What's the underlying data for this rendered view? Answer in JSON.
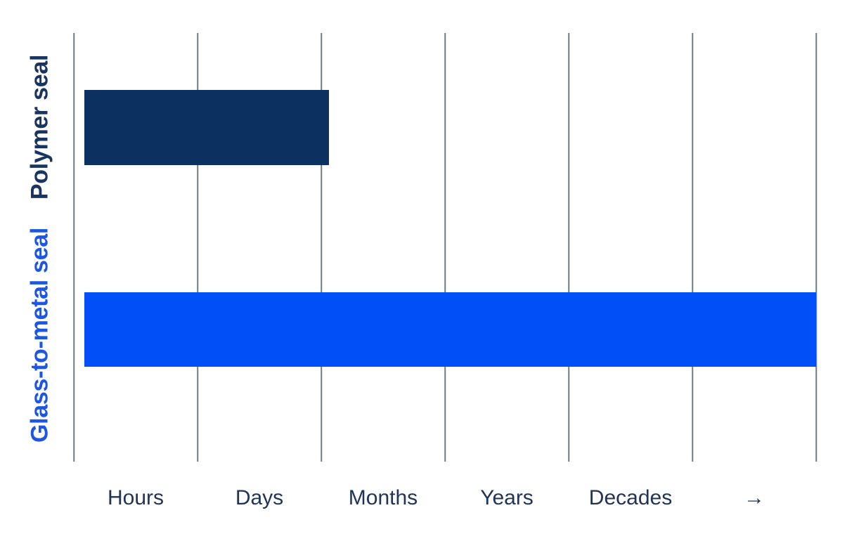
{
  "chart_data": {
    "type": "bar",
    "orientation": "horizontal",
    "title": "",
    "categories": [
      "Polymer seal",
      "Glass-to-metal seal"
    ],
    "x_tick_labels": [
      "Hours",
      "Days",
      "Months",
      "Years",
      "Decades",
      "→"
    ],
    "axis_range_gridline_units": [
      0,
      6
    ],
    "gridline_count": 7,
    "bar_start_gridline_units": 0.085,
    "bars": [
      {
        "category": "Polymer seal",
        "value_gridline_units": 2.06,
        "approx_span": "reaches just past the Days/Months boundary gridline",
        "color": "#0c3161"
      },
      {
        "category": "Glass-to-metal seal",
        "value_gridline_units": 6.0,
        "approx_span": "spans the full scale to the arrow beyond Decades",
        "color": "#0150f7"
      }
    ],
    "colors": {
      "polymer_bar": "#0c3161",
      "polymer_label": "#1a3462",
      "glass_bar": "#0150f7",
      "glass_label": "#1c56e2",
      "tick_label": "#203457",
      "gridline": "#717a84",
      "background": "#ffffff"
    },
    "legend": "none",
    "grid": "vertical gridlines only, no horizontal axis line"
  }
}
